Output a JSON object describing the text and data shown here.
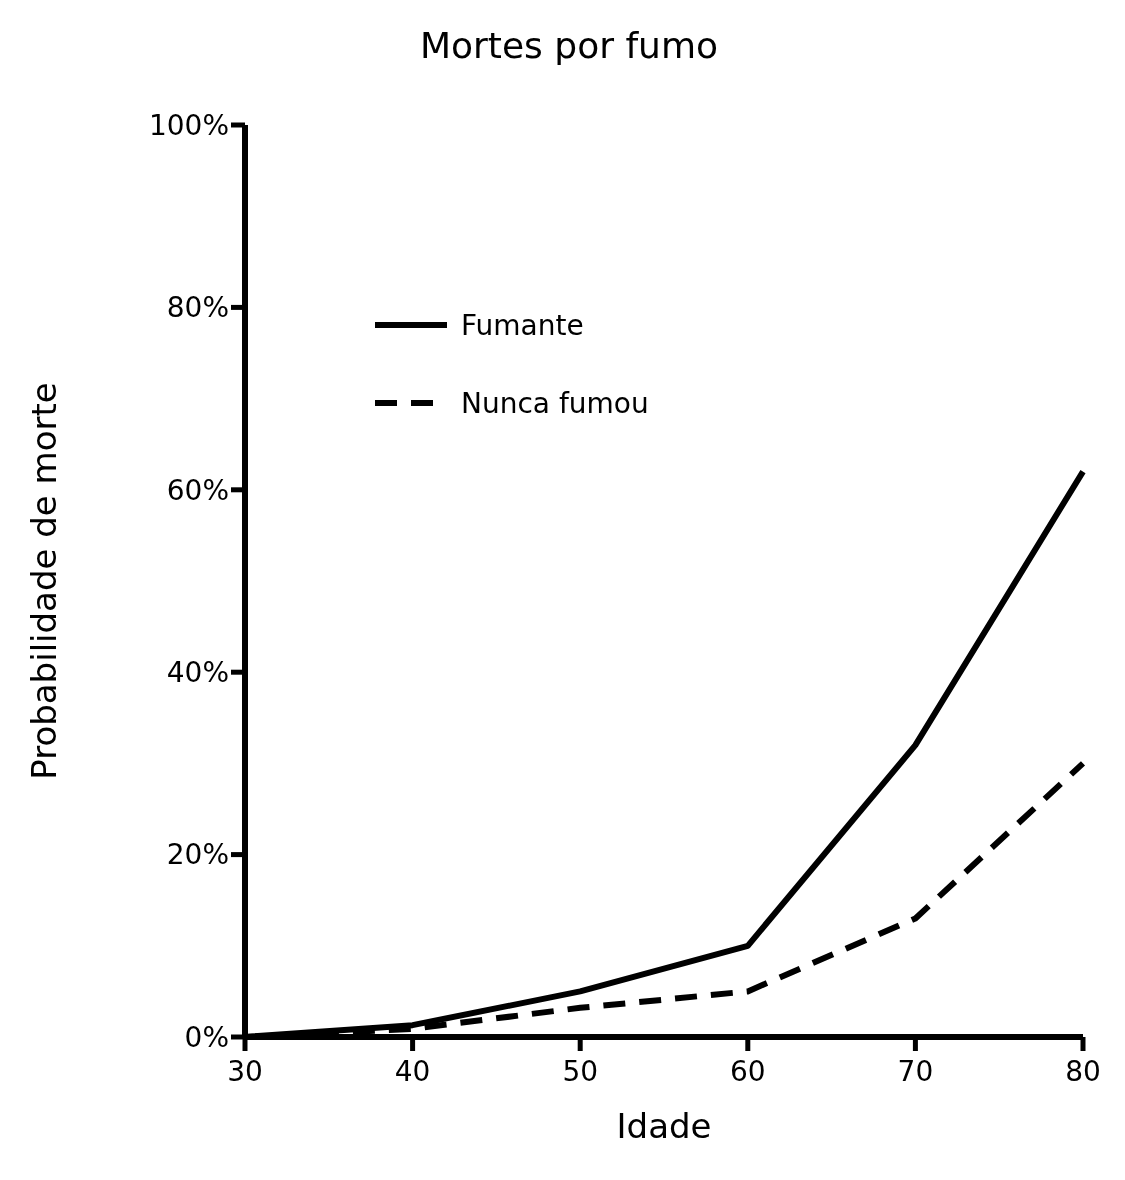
{
  "chart_data": {
    "type": "line",
    "title": "Mortes por fumo",
    "xlabel": "Idade",
    "ylabel": "Probabilidade de morte",
    "x": [
      30,
      40,
      50,
      60,
      70,
      80
    ],
    "series": [
      {
        "name": "Fumante",
        "color": "#000000",
        "line_style": "solid",
        "values": [
          0,
          1.3,
          5,
          10,
          32,
          62
        ]
      },
      {
        "name": "Nunca fumou",
        "color": "#000000",
        "line_style": "dashed",
        "values": [
          0,
          0.9,
          3.2,
          5,
          13,
          30
        ]
      }
    ],
    "xlim": [
      30,
      80
    ],
    "xticks": [
      30,
      40,
      50,
      60,
      70,
      80
    ],
    "ylim": [
      0,
      100
    ],
    "yticks": [
      {
        "value": 0,
        "label": "0%"
      },
      {
        "value": 20,
        "label": "20%"
      },
      {
        "value": 40,
        "label": "40%"
      },
      {
        "value": 60,
        "label": "60%"
      },
      {
        "value": 80,
        "label": "80%"
      },
      {
        "value": 100,
        "label": "100%"
      }
    ],
    "grid": false,
    "legend": "top left",
    "marker": "none"
  }
}
